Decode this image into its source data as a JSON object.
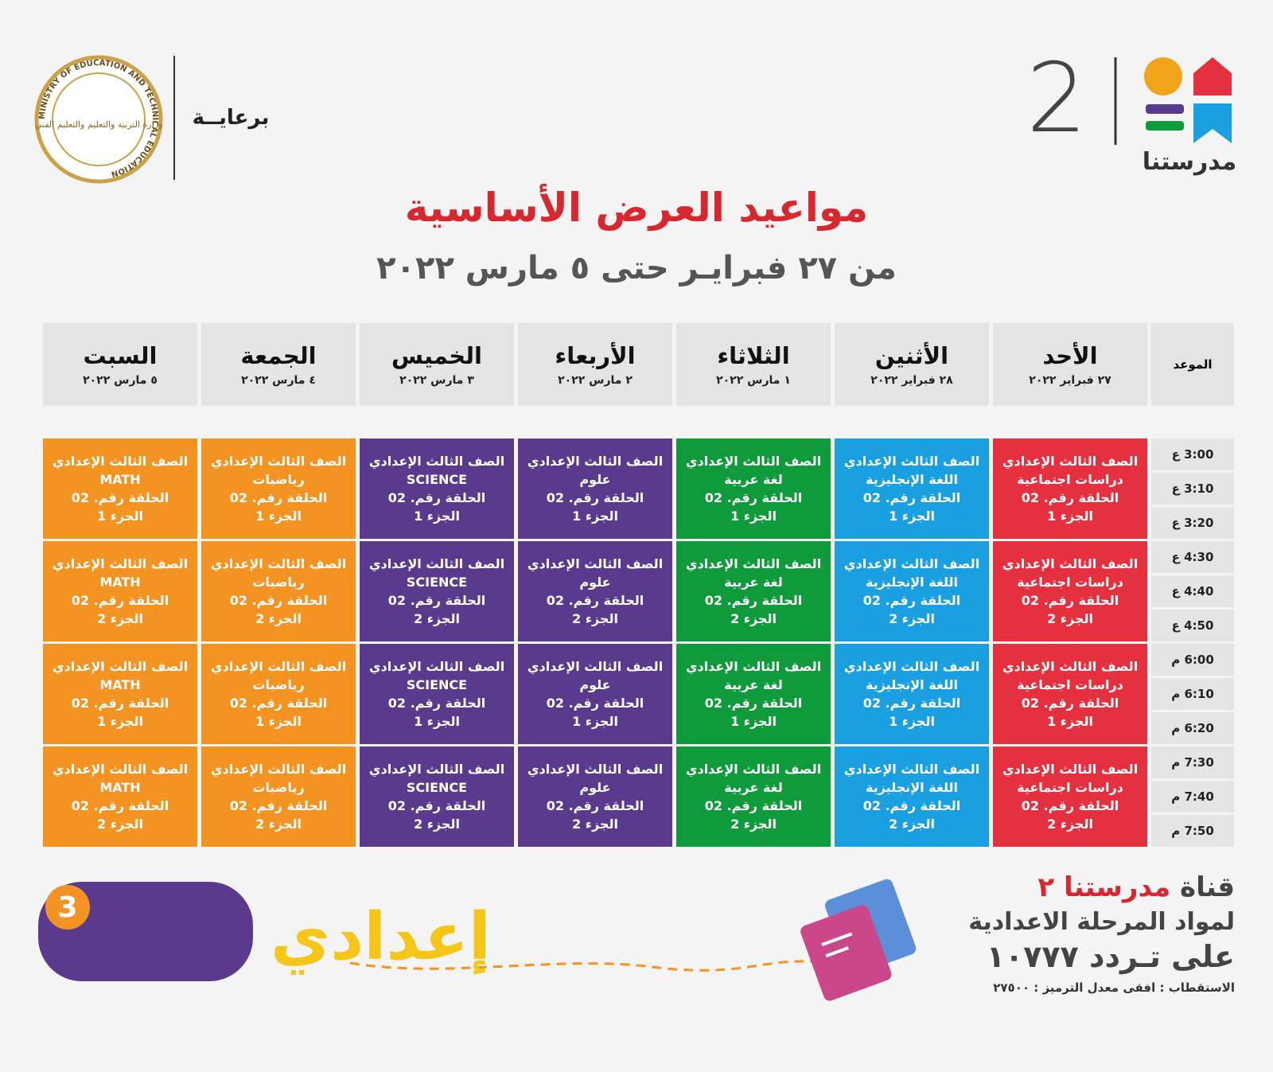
{
  "header": {
    "logo_number": "2",
    "logo_name": "مدرستنا",
    "sponsor": "برعايــة",
    "seal_text": "MINISTRY OF EDUCATION AND TECHNICAL EDUCATION",
    "seal_arabic": "وزارة التربية والتعليم والتعليم الفني"
  },
  "title": "مواعيد العرض الأساسية",
  "subtitle": "من ٢٧ فبرايـر حتى ٥ مارس ٢٠٢٢",
  "table": {
    "time_header": "الموعد",
    "days": [
      {
        "name": "الأحد",
        "date": "٢٧ فبراير ٢٠٢٢",
        "color": "#e5303f"
      },
      {
        "name": "الأثنين",
        "date": "٢٨ فبراير ٢٠٢٢",
        "color": "#1a9fe0"
      },
      {
        "name": "الثلاثاء",
        "date": "١ مارس ٢٠٢٢",
        "color": "#0f9a3c"
      },
      {
        "name": "الأربعاء",
        "date": "٢ مارس ٢٠٢٢",
        "color": "#5a3a8c"
      },
      {
        "name": "الخميس",
        "date": "٣ مارس ٢٠٢٢",
        "color": "#5a3a8c"
      },
      {
        "name": "الجمعة",
        "date": "٤ مارس ٢٠٢٢",
        "color": "#f39322"
      },
      {
        "name": "السبت",
        "date": "٥ مارس ٢٠٢٢",
        "color": "#f39322"
      }
    ],
    "blocks": [
      {
        "times": [
          "3:00 ع",
          "3:10 ع",
          "3:20 ع"
        ],
        "cells": [
          {
            "grade": "الصف الثالث الإعدادي",
            "subject": "دراسات اجتماعية",
            "episode": "الحلقة رقم. 02",
            "part": "الجزء 1"
          },
          {
            "grade": "الصف الثالث الإعدادي",
            "subject": "اللغة الإنجليزية",
            "episode": "الحلقة رقم. 02",
            "part": "الجزء 1"
          },
          {
            "grade": "الصف الثالث الإعدادي",
            "subject": "لغة عربية",
            "episode": "الحلقة رقم. 02",
            "part": "الجزء 1"
          },
          {
            "grade": "الصف الثالث الإعدادي",
            "subject": "علوم",
            "episode": "الحلقة رقم. 02",
            "part": "الجزء 1"
          },
          {
            "grade": "الصف الثالث الإعدادي",
            "subject": "SCIENCE",
            "episode": "الحلقة رقم. 02",
            "part": "الجزء 1"
          },
          {
            "grade": "الصف الثالث الإعدادي",
            "subject": "رياضيات",
            "episode": "الحلقة رقم. 02",
            "part": "الجزء 1"
          },
          {
            "grade": "الصف الثالث الإعدادي",
            "subject": "MATH",
            "episode": "الحلقة رقم. 02",
            "part": "الجزء 1"
          }
        ]
      },
      {
        "times": [
          "4:30 ع",
          "4:40 ع",
          "4:50 ع"
        ],
        "cells": [
          {
            "grade": "الصف الثالث الإعدادي",
            "subject": "دراسات اجتماعية",
            "episode": "الحلقة رقم. 02",
            "part": "الجزء 2"
          },
          {
            "grade": "الصف الثالث الإعدادي",
            "subject": "اللغة الإنجليزية",
            "episode": "الحلقة رقم. 02",
            "part": "الجزء 2"
          },
          {
            "grade": "الصف الثالث الإعدادي",
            "subject": "لغة عربية",
            "episode": "الحلقة رقم. 02",
            "part": "الجزء 2"
          },
          {
            "grade": "الصف الثالث الإعدادي",
            "subject": "علوم",
            "episode": "الحلقة رقم. 02",
            "part": "الجزء 2"
          },
          {
            "grade": "الصف الثالث الإعدادي",
            "subject": "SCIENCE",
            "episode": "الحلقة رقم. 02",
            "part": "الجزء 2"
          },
          {
            "grade": "الصف الثالث الإعدادي",
            "subject": "رياضيات",
            "episode": "الحلقة رقم. 02",
            "part": "الجزء 2"
          },
          {
            "grade": "الصف الثالث الإعدادي",
            "subject": "MATH",
            "episode": "الحلقة رقم. 02",
            "part": "الجزء 2"
          }
        ]
      },
      {
        "times": [
          "6:00 م",
          "6:10 م",
          "6:20 م"
        ],
        "cells": [
          {
            "grade": "الصف الثالث الإعدادي",
            "subject": "دراسات اجتماعية",
            "episode": "الحلقة رقم. 02",
            "part": "الجزء 1"
          },
          {
            "grade": "الصف الثالث الإعدادي",
            "subject": "اللغة الإنجليزية",
            "episode": "الحلقة رقم. 02",
            "part": "الجزء 1"
          },
          {
            "grade": "الصف الثالث الإعدادي",
            "subject": "لغة عربية",
            "episode": "الحلقة رقم. 02",
            "part": "الجزء 1"
          },
          {
            "grade": "الصف الثالث الإعدادي",
            "subject": "علوم",
            "episode": "الحلقة رقم. 02",
            "part": "الجزء 1"
          },
          {
            "grade": "الصف الثالث الإعدادي",
            "subject": "SCIENCE",
            "episode": "الحلقة رقم. 02",
            "part": "الجزء 1"
          },
          {
            "grade": "الصف الثالث الإعدادي",
            "subject": "رياضيات",
            "episode": "الحلقة رقم. 02",
            "part": "الجزء 1"
          },
          {
            "grade": "الصف الثالث الإعدادي",
            "subject": "MATH",
            "episode": "الحلقة رقم. 02",
            "part": "الجزء 1"
          }
        ]
      },
      {
        "times": [
          "7:30 م",
          "7:40 م",
          "7:50 م"
        ],
        "cells": [
          {
            "grade": "الصف الثالث الإعدادي",
            "subject": "دراسات اجتماعية",
            "episode": "الحلقة رقم. 02",
            "part": "الجزء 2"
          },
          {
            "grade": "الصف الثالث الإعدادي",
            "subject": "اللغة الإنجليزية",
            "episode": "الحلقة رقم. 02",
            "part": "الجزء 2"
          },
          {
            "grade": "الصف الثالث الإعدادي",
            "subject": "لغة عربية",
            "episode": "الحلقة رقم. 02",
            "part": "الجزء 2"
          },
          {
            "grade": "الصف الثالث الإعدادي",
            "subject": "علوم",
            "episode": "الحلقة رقم. 02",
            "part": "الجزء 2"
          },
          {
            "grade": "الصف الثالث الإعدادي",
            "subject": "SCIENCE",
            "episode": "الحلقة رقم. 02",
            "part": "الجزء 2"
          },
          {
            "grade": "الصف الثالث الإعدادي",
            "subject": "رياضيات",
            "episode": "الحلقة رقم. 02",
            "part": "الجزء 2"
          },
          {
            "grade": "الصف الثالث الإعدادي",
            "subject": "MATH",
            "episode": "الحلقة رقم. 02",
            "part": "الجزء 2"
          }
        ]
      }
    ]
  },
  "footer": {
    "channel_prefix": "قناة",
    "channel_name": "مدرستنا ٢",
    "line2": "لمواد المرحلة الاعدادية",
    "line3": "على تـردد ١٠٧٧٧",
    "line4": "الاستقطاب : افقى معدل الترميز : ٢٧٥٠٠",
    "badge_word": "إعدادي",
    "badge_number": "3"
  }
}
